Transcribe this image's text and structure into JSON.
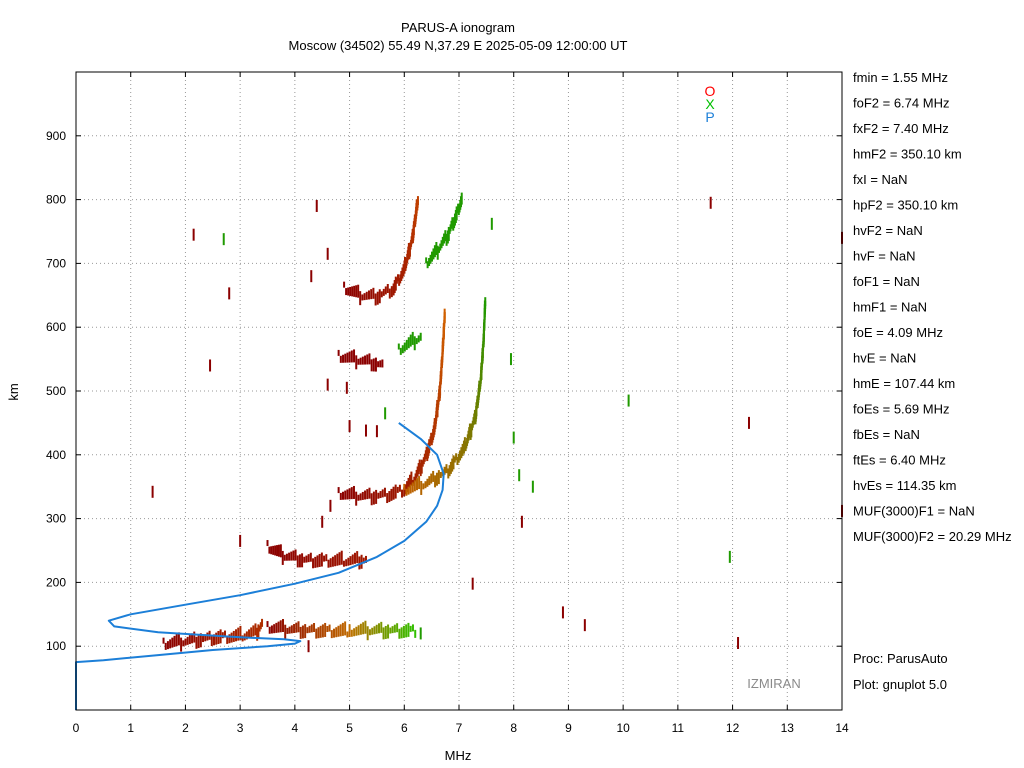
{
  "chart_data": {
    "type": "scatter",
    "title": "PARUS-A ionogram",
    "subtitle": "Moscow (34502) 55.49 N,37.29 E   2025-05-09 12:00:00 UT",
    "xlabel": "MHz",
    "ylabel": "km",
    "xlim": [
      0,
      14
    ],
    "ylim": [
      0,
      1000
    ],
    "x_ticks": [
      0,
      1,
      2,
      3,
      4,
      5,
      6,
      7,
      8,
      9,
      10,
      11,
      12,
      13,
      14
    ],
    "y_ticks": [
      100,
      200,
      300,
      400,
      500,
      600,
      700,
      800,
      900
    ],
    "grid": true,
    "legend_position": "top-right",
    "series": [
      {
        "name": "O",
        "color": "#ff0000",
        "traces": [
          {
            "start_color": "#8b0000",
            "end_color": "#b03000",
            "points": [
              [
                1.6,
                104
              ],
              [
                2.0,
                108
              ],
              [
                2.5,
                113
              ],
              [
                3.0,
                116
              ],
              [
                3.3,
                122
              ],
              [
                3.4,
                135
              ]
            ]
          },
          {
            "start_color": "#8b0000",
            "end_color": "#c06a00",
            "points": [
              [
                3.5,
                130
              ],
              [
                4.0,
                126
              ],
              [
                4.5,
                124
              ],
              [
                5.0,
                123
              ]
            ]
          },
          {
            "start_color": "#8b0000",
            "end_color": "#a01800",
            "points": [
              [
                3.5,
                257
              ],
              [
                3.8,
                242
              ],
              [
                4.2,
                235
              ],
              [
                4.6,
                234
              ],
              [
                5.0,
                234
              ],
              [
                5.3,
                236
              ]
            ]
          },
          {
            "start_color": "#8b0000",
            "end_color": "#d06000",
            "points": [
              [
                4.8,
                340
              ],
              [
                5.1,
                336
              ],
              [
                5.4,
                335
              ],
              [
                5.7,
                337
              ],
              [
                6.0,
                345
              ],
              [
                6.2,
                365
              ],
              [
                6.4,
                398
              ],
              [
                6.55,
                440
              ],
              [
                6.65,
                500
              ],
              [
                6.7,
                560
              ],
              [
                6.74,
                620
              ]
            ]
          },
          {
            "start_color": "#8b0000",
            "end_color": "#c04000",
            "points": [
              [
                4.9,
                662
              ],
              [
                5.2,
                650
              ],
              [
                5.5,
                648
              ],
              [
                5.8,
                660
              ],
              [
                6.0,
                690
              ],
              [
                6.15,
                740
              ],
              [
                6.25,
                800
              ]
            ]
          },
          {
            "start_color": "#8b0000",
            "end_color": "#8b0000",
            "points": [
              [
                4.8,
                555
              ],
              [
                5.1,
                550
              ],
              [
                5.4,
                545
              ],
              [
                5.6,
                540
              ]
            ]
          }
        ]
      },
      {
        "name": "X",
        "color": "#00c000",
        "traces": [
          {
            "start_color": "#c07000",
            "end_color": "#30c000",
            "points": [
              [
                5.0,
                125
              ],
              [
                5.5,
                125
              ],
              [
                6.0,
                124
              ],
              [
                6.2,
                124
              ]
            ]
          },
          {
            "start_color": "#c06000",
            "end_color": "#209a00",
            "points": [
              [
                6.0,
                345
              ],
              [
                6.4,
                355
              ],
              [
                6.8,
                375
              ],
              [
                7.1,
                410
              ],
              [
                7.3,
                460
              ],
              [
                7.4,
                520
              ],
              [
                7.45,
                580
              ],
              [
                7.48,
                640
              ]
            ]
          },
          {
            "start_color": "#209a00",
            "end_color": "#209a00",
            "points": [
              [
                5.9,
                565
              ],
              [
                6.1,
                575
              ],
              [
                6.3,
                585
              ]
            ]
          },
          {
            "start_color": "#209a00",
            "end_color": "#209a00",
            "points": [
              [
                6.4,
                700
              ],
              [
                6.6,
                720
              ],
              [
                6.8,
                745
              ],
              [
                6.95,
                775
              ],
              [
                7.05,
                800
              ]
            ]
          }
        ]
      },
      {
        "name": "P",
        "color": "#1c7fd8",
        "points": [
          [
            0,
            0
          ],
          [
            0,
            75
          ],
          [
            0.5,
            78
          ],
          [
            1.5,
            86
          ],
          [
            2.5,
            94
          ],
          [
            3.5,
            100
          ],
          [
            4.0,
            104
          ],
          [
            4.1,
            108
          ],
          [
            3.8,
            111
          ],
          [
            3.0,
            114
          ],
          [
            1.5,
            122
          ],
          [
            0.7,
            131
          ],
          [
            0.6,
            140
          ],
          [
            1.0,
            150
          ],
          [
            2.0,
            165
          ],
          [
            3.0,
            180
          ],
          [
            4.0,
            198
          ],
          [
            4.8,
            215
          ],
          [
            5.5,
            240
          ],
          [
            6.0,
            265
          ],
          [
            6.4,
            295
          ],
          [
            6.6,
            320
          ],
          [
            6.7,
            345
          ],
          [
            6.72,
            370
          ],
          [
            6.6,
            400
          ],
          [
            6.3,
            425
          ],
          [
            5.9,
            450
          ]
        ]
      }
    ],
    "parameters": [
      "fmin = 1.55 MHz",
      "foF2 = 6.74 MHz",
      "fxF2 = 7.40 MHz",
      "hmF2 = 350.10 km",
      "fxI  = NaN",
      "hpF2 = 350.10 km",
      "hvF2 = NaN",
      "hvF  = NaN",
      "foF1 = NaN",
      "hmF1 = NaN",
      "foE  = 4.09 MHz",
      "hvE  = NaN",
      "hmE  = 107.44 km",
      "foEs = 5.69 MHz",
      "fbEs = NaN",
      "ftEs = 6.40 MHz",
      "hvEs = 114.35 km",
      "MUF(3000)F1 = NaN",
      "MUF(3000)F2 = 20.29 MHz"
    ],
    "footer": [
      "Proc: ParusAuto",
      "Plot: gnuplot 5.0"
    ],
    "watermark": "IZMIRAN",
    "noise_points": [
      {
        "x": 4.4,
        "y": 790,
        "color": "#8b0000"
      },
      {
        "x": 2.15,
        "y": 745,
        "color": "#8b0000"
      },
      {
        "x": 2.7,
        "y": 738,
        "color": "#209a00"
      },
      {
        "x": 4.3,
        "y": 680,
        "color": "#8b0000"
      },
      {
        "x": 2.8,
        "y": 653,
        "color": "#8b0000"
      },
      {
        "x": 4.6,
        "y": 715,
        "color": "#8b0000"
      },
      {
        "x": 7.6,
        "y": 762,
        "color": "#209a00"
      },
      {
        "x": 11.6,
        "y": 795,
        "color": "#8b0000"
      },
      {
        "x": 14.0,
        "y": 740,
        "color": "#8b0000"
      },
      {
        "x": 2.45,
        "y": 540,
        "color": "#8b0000"
      },
      {
        "x": 7.95,
        "y": 550,
        "color": "#209a00"
      },
      {
        "x": 10.1,
        "y": 485,
        "color": "#209a00"
      },
      {
        "x": 12.3,
        "y": 450,
        "color": "#8b0000"
      },
      {
        "x": 8.0,
        "y": 427,
        "color": "#209a00"
      },
      {
        "x": 8.1,
        "y": 368,
        "color": "#209a00"
      },
      {
        "x": 8.35,
        "y": 350,
        "color": "#209a00"
      },
      {
        "x": 1.4,
        "y": 342,
        "color": "#8b0000"
      },
      {
        "x": 8.15,
        "y": 295,
        "color": "#8b0000"
      },
      {
        "x": 14.0,
        "y": 312,
        "color": "#8b0000"
      },
      {
        "x": 3.0,
        "y": 265,
        "color": "#8b0000"
      },
      {
        "x": 11.95,
        "y": 240,
        "color": "#209a00"
      },
      {
        "x": 7.25,
        "y": 198,
        "color": "#8b0000"
      },
      {
        "x": 8.9,
        "y": 153,
        "color": "#8b0000"
      },
      {
        "x": 9.3,
        "y": 133,
        "color": "#8b0000"
      },
      {
        "x": 12.1,
        "y": 105,
        "color": "#8b0000"
      },
      {
        "x": 5.65,
        "y": 465,
        "color": "#209a00"
      },
      {
        "x": 5.0,
        "y": 445,
        "color": "#8b0000"
      },
      {
        "x": 5.3,
        "y": 438,
        "color": "#8b0000"
      },
      {
        "x": 5.5,
        "y": 437,
        "color": "#8b0000"
      },
      {
        "x": 4.5,
        "y": 295,
        "color": "#8b0000"
      },
      {
        "x": 4.65,
        "y": 320,
        "color": "#8b0000"
      },
      {
        "x": 4.25,
        "y": 100,
        "color": "#8b0000"
      },
      {
        "x": 6.3,
        "y": 120,
        "color": "#209a00"
      },
      {
        "x": 4.6,
        "y": 510,
        "color": "#8b0000"
      },
      {
        "x": 4.95,
        "y": 505,
        "color": "#8b0000"
      }
    ]
  }
}
